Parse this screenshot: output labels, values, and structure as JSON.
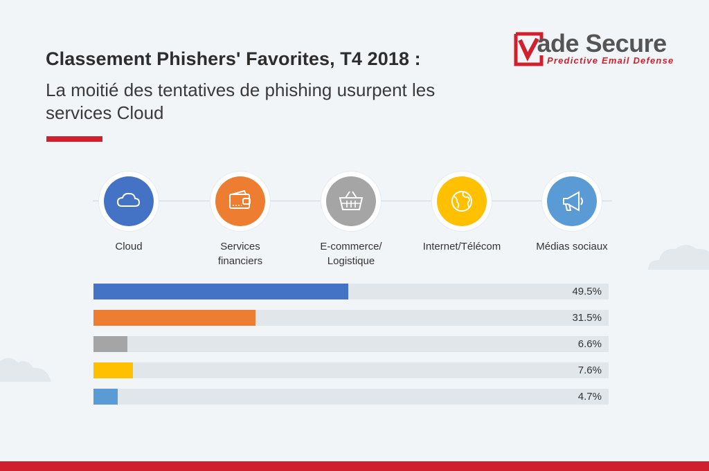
{
  "header": {
    "title": "Classement Phishers' Favorites, T4 2018 :",
    "subtitle": "La moitié des tentatives de phishing usurpent les services Cloud"
  },
  "logo": {
    "word_v": "V",
    "word_rest": "ade Secure",
    "tagline": "Predictive Email Defense"
  },
  "colors": {
    "accent": "#d1202d",
    "track": "#e1e6ea",
    "background": "#f2f5f8"
  },
  "categories": [
    {
      "label": "Cloud",
      "icon": "cloud-icon",
      "color": "#4472c4"
    },
    {
      "label": "Services financiers",
      "icon": "wallet-icon",
      "color": "#ed7d31"
    },
    {
      "label": "E-commerce/ Logistique",
      "icon": "basket-icon",
      "color": "#a5a5a5"
    },
    {
      "label": "Internet/Télécom",
      "icon": "globe-icon",
      "color": "#ffc000"
    },
    {
      "label": "Médias sociaux",
      "icon": "megaphone-icon",
      "color": "#5b9bd5"
    }
  ],
  "chart_data": {
    "type": "bar",
    "orientation": "horizontal",
    "categories": [
      "Cloud",
      "Services financiers",
      "E-commerce/ Logistique",
      "Internet/Télécom",
      "Médias sociaux"
    ],
    "values": [
      49.5,
      31.5,
      6.6,
      7.6,
      4.7
    ],
    "value_labels": [
      "49.5%",
      "31.5%",
      "6.6%",
      "7.6%",
      "4.7%"
    ],
    "colors": [
      "#4472c4",
      "#ed7d31",
      "#a5a5a5",
      "#ffc000",
      "#5b9bd5"
    ],
    "xlim": [
      0,
      100
    ],
    "grid": false
  }
}
